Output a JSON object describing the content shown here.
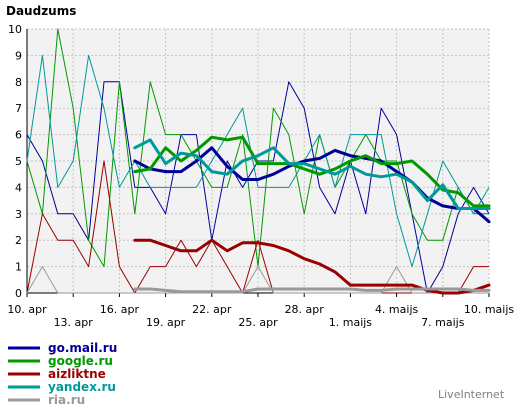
{
  "chart_data": {
    "type": "line",
    "title": "Daudzums",
    "watermark": "LiveInternet",
    "ylim": [
      0,
      10
    ],
    "yticks": [
      0,
      1,
      2,
      3,
      4,
      5,
      6,
      7,
      8,
      9,
      10
    ],
    "x_tick_labels": [
      {
        "day": 0,
        "label": "10. apr",
        "row": 1
      },
      {
        "day": 3,
        "label": "13. apr",
        "row": 2
      },
      {
        "day": 6,
        "label": "16. apr",
        "row": 1
      },
      {
        "day": 9,
        "label": "19. apr",
        "row": 2
      },
      {
        "day": 12,
        "label": "22. apr",
        "row": 1
      },
      {
        "day": 15,
        "label": "25. apr",
        "row": 2
      },
      {
        "day": 18,
        "label": "28. apr",
        "row": 1
      },
      {
        "day": 21,
        "label": "1. maijs",
        "row": 2
      },
      {
        "day": 24,
        "label": "4. maijs",
        "row": 1
      },
      {
        "day": 27,
        "label": "7. maijs",
        "row": 2
      },
      {
        "day": 30,
        "label": "10. maijs",
        "row": 1
      }
    ],
    "grid": true,
    "legend_position": "bottom-left",
    "series": [
      {
        "name": "go.mail.ru",
        "color": "#000099",
        "values": [
          6,
          5,
          3,
          3,
          2,
          8,
          8,
          4,
          4,
          3,
          6,
          6,
          2,
          5,
          4,
          5,
          5,
          8,
          7,
          4,
          3,
          5,
          3,
          7,
          6,
          3,
          0,
          1,
          3,
          4,
          3
        ],
        "trend": [
          null,
          null,
          null,
          null,
          null,
          null,
          null,
          5.0,
          4.7,
          4.6,
          4.6,
          5.0,
          5.5,
          4.8,
          4.3,
          4.3,
          4.5,
          4.8,
          5.0,
          5.1,
          5.4,
          5.2,
          5.1,
          5.0,
          4.6,
          4.2,
          3.6,
          3.3,
          3.2,
          3.2,
          2.7
        ]
      },
      {
        "name": "google.ru",
        "color": "#009900",
        "values": [
          5,
          3,
          10,
          7,
          2,
          1,
          8,
          3,
          8,
          6,
          6,
          5,
          4,
          4,
          6,
          1,
          7,
          6,
          3,
          6,
          4,
          5,
          6,
          5,
          5,
          3,
          2,
          2,
          4,
          3,
          3
        ],
        "trend": [
          null,
          null,
          null,
          null,
          null,
          null,
          null,
          4.6,
          4.7,
          5.5,
          5.0,
          5.4,
          5.9,
          5.8,
          5.9,
          4.9,
          4.9,
          4.9,
          4.7,
          4.5,
          4.7,
          5.0,
          5.2,
          4.9,
          4.9,
          5.0,
          4.5,
          3.9,
          3.8,
          3.3,
          3.3
        ]
      },
      {
        "name": "aizliktne",
        "color": "#990000",
        "values": [
          0,
          3,
          2,
          2,
          1,
          5,
          1,
          0,
          1,
          1,
          2,
          1,
          2,
          1,
          0,
          2,
          0,
          0,
          0,
          0,
          0,
          0,
          0,
          0,
          0,
          0,
          0,
          0,
          0,
          1,
          1
        ],
        "trend": [
          null,
          null,
          null,
          null,
          null,
          null,
          null,
          2.0,
          2.0,
          1.8,
          1.6,
          1.6,
          2.0,
          1.6,
          1.9,
          1.9,
          1.8,
          1.6,
          1.3,
          1.1,
          0.8,
          0.3,
          0.3,
          0.3,
          0.3,
          0.3,
          0.1,
          0.0,
          0.0,
          0.1,
          0.3
        ]
      },
      {
        "name": "yandex.ru",
        "color": "#009999",
        "values": [
          5,
          9,
          4,
          5,
          9,
          7,
          4,
          5,
          4,
          4,
          4,
          4,
          5,
          6,
          7,
          4,
          4,
          4,
          5,
          6,
          4,
          6,
          6,
          6,
          3,
          1,
          3,
          5,
          4,
          3,
          4
        ],
        "trend": [
          null,
          null,
          null,
          null,
          null,
          null,
          null,
          5.5,
          5.8,
          4.9,
          5.3,
          5.2,
          4.6,
          4.5,
          5.0,
          5.2,
          5.5,
          4.9,
          4.9,
          4.7,
          4.5,
          4.8,
          4.5,
          4.4,
          4.5,
          4.2,
          3.5,
          4.1,
          3.2,
          3.2,
          3.2
        ]
      },
      {
        "name": "ria.ru",
        "color": "#999999",
        "values": [
          0,
          1,
          0,
          0,
          0,
          0,
          0,
          0,
          0,
          0,
          0,
          0,
          0,
          0,
          0,
          1,
          0,
          0,
          0,
          0,
          0,
          0,
          0,
          0,
          1,
          0,
          0,
          0,
          0,
          0,
          0
        ],
        "trend": [
          null,
          null,
          null,
          null,
          null,
          null,
          null,
          0.15,
          0.15,
          0.1,
          0.05,
          0.05,
          0.05,
          0.05,
          0.05,
          0.15,
          0.15,
          0.15,
          0.15,
          0.15,
          0.15,
          0.15,
          0.1,
          0.1,
          0.15,
          0.15,
          0.15,
          0.15,
          0.15,
          0.1,
          0.1
        ]
      }
    ]
  }
}
